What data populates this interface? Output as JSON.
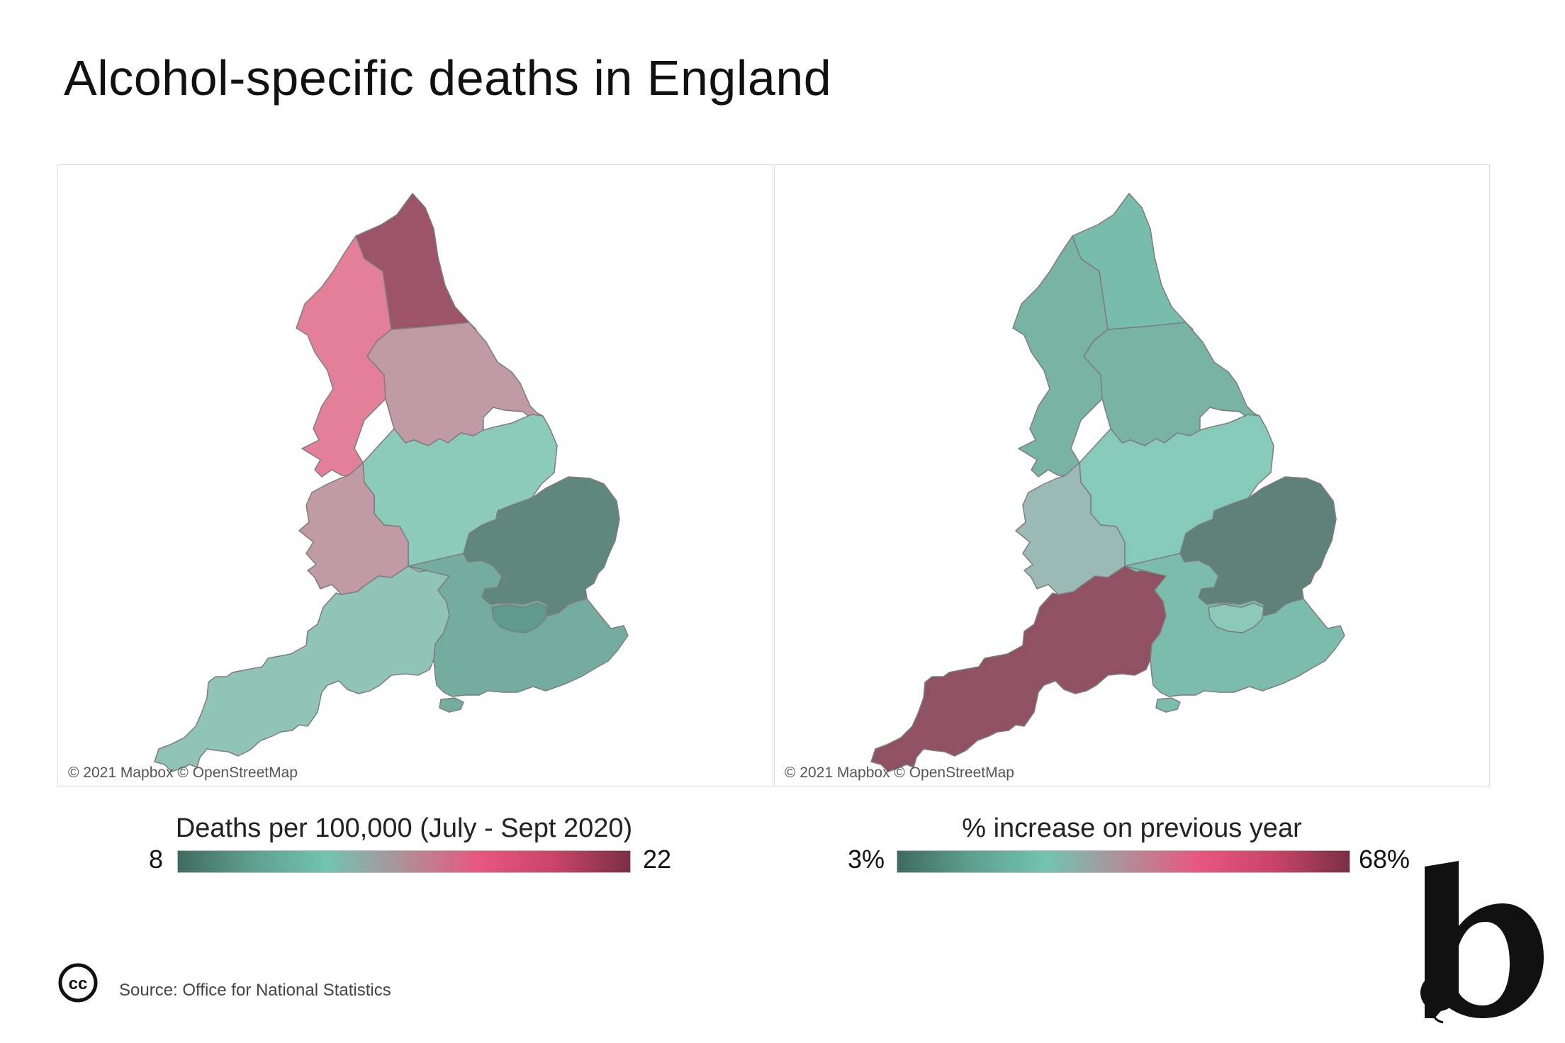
{
  "title": "Alcohol-specific deaths in England",
  "attribution": "© 2021 Mapbox © OpenStreetMap",
  "source": "Source: Office for National Statistics",
  "legends": {
    "left": {
      "title": "Deaths per 100,000 (July - Sept 2020)",
      "min": "8",
      "max": "22"
    },
    "right": {
      "title": "% increase on previous year",
      "min": "3%",
      "max": "68%"
    }
  },
  "colors": {
    "ramp": [
      "#3f6b5f",
      "#5fa190",
      "#72c4b0",
      "#b08f9a",
      "#e8577e",
      "#c94466",
      "#7a2f45"
    ],
    "border": "#7d7d7d"
  },
  "icons": {
    "license": "creative-commons-icon",
    "logo": "b-logo-icon"
  },
  "maps": {
    "left": {
      "regions": [
        {
          "id": "north-east",
          "color": "#9e5468"
        },
        {
          "id": "north-west",
          "color": "#e47f9a"
        },
        {
          "id": "yorkshire",
          "color": "#c09aa4"
        },
        {
          "id": "east-midlands",
          "color": "#8dcbb9"
        },
        {
          "id": "west-midlands",
          "color": "#c09aa4"
        },
        {
          "id": "east",
          "color": "#5f877c"
        },
        {
          "id": "south-west",
          "color": "#8fc4b6"
        },
        {
          "id": "south-east",
          "color": "#74ad9f"
        },
        {
          "id": "london",
          "color": "#5f9a8c"
        }
      ]
    },
    "right": {
      "regions": [
        {
          "id": "north-east",
          "color": "#78bcab"
        },
        {
          "id": "north-west",
          "color": "#78b3a4"
        },
        {
          "id": "yorkshire",
          "color": "#78b3a4"
        },
        {
          "id": "east-midlands",
          "color": "#86cbb9"
        },
        {
          "id": "west-midlands",
          "color": "#9cbab5"
        },
        {
          "id": "east",
          "color": "#5e8279"
        },
        {
          "id": "south-west",
          "color": "#905163"
        },
        {
          "id": "south-east",
          "color": "#7cbcad"
        },
        {
          "id": "london",
          "color": "#8cc9b9"
        }
      ]
    }
  }
}
